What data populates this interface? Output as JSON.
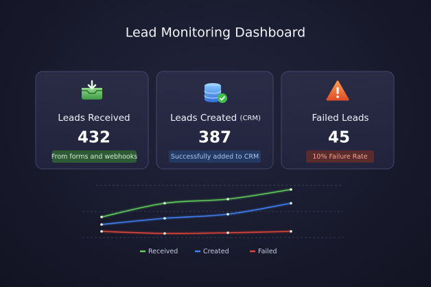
{
  "header": {
    "title": "Lead Monitoring Dashboard"
  },
  "cards": [
    {
      "label": "Leads Received",
      "value": 432,
      "note": "From forms and webhooks"
    },
    {
      "label": "Leads Created",
      "label_suffix": "(CRM)",
      "value": 387,
      "note": "Successfully added to CRM"
    },
    {
      "label": "Failed Leads",
      "value": 45,
      "note": "10% Failure Rate"
    }
  ],
  "chart": {
    "type": "line",
    "series": [
      {
        "name": "Received",
        "color": "#5fcf5a",
        "values": [
          34,
          54,
          60,
          74
        ]
      },
      {
        "name": "Created",
        "color": "#3f7ff0",
        "values": [
          23,
          32,
          38,
          54
        ]
      },
      {
        "name": "Failed",
        "color": "#e0453a",
        "values": [
          13,
          10,
          11,
          13
        ]
      }
    ]
  }
}
